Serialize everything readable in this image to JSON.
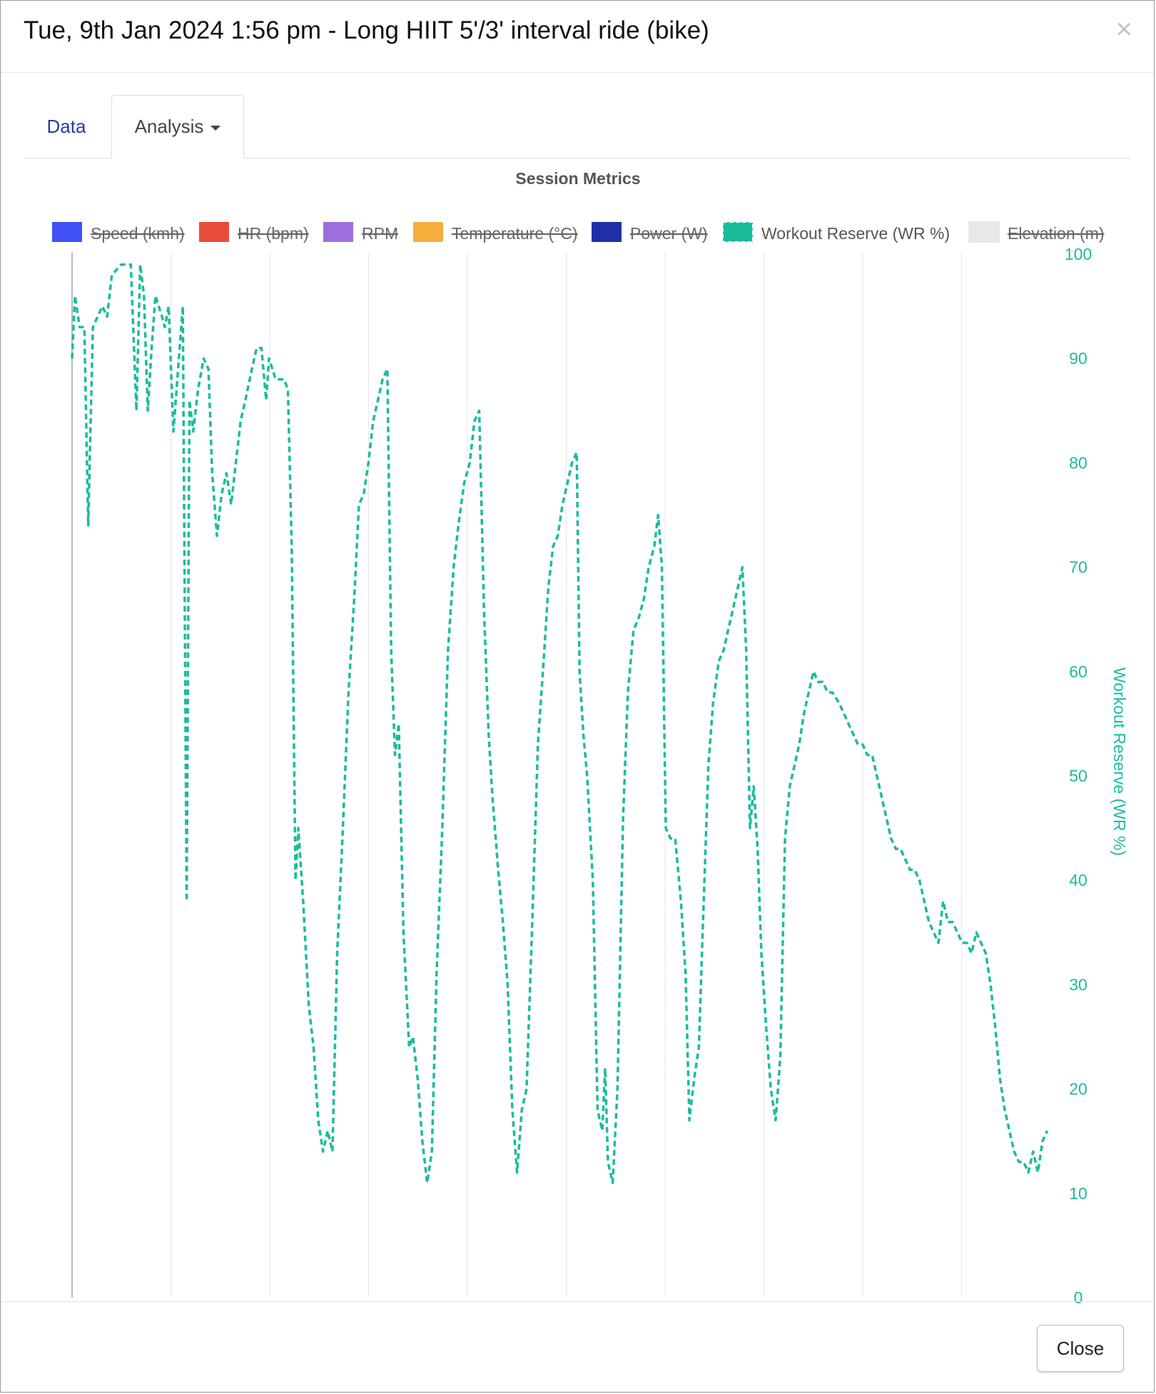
{
  "modal": {
    "title": "Tue, 9th Jan 2024 1:56 pm - Long HIIT 5'/3' interval ride (bike)",
    "close_icon": "×",
    "close_label": "Close"
  },
  "tabs": [
    {
      "label": "Data",
      "active": false
    },
    {
      "label": "Analysis",
      "active": true,
      "has_dropdown": true
    }
  ],
  "chart_data": {
    "type": "line",
    "title": "Session Metrics",
    "legend": [
      {
        "name": "Speed (kmh)",
        "color": "#3f51f5",
        "enabled": false
      },
      {
        "name": "HR (bpm)",
        "color": "#e84c3d",
        "enabled": false
      },
      {
        "name": "RPM",
        "color": "#9c6fde",
        "enabled": false
      },
      {
        "name": "Temperature (°C)",
        "color": "#f7ae3c",
        "enabled": false
      },
      {
        "name": "Power (W)",
        "color": "#1f2fa8",
        "enabled": false
      },
      {
        "name": "Workout Reserve (WR %)",
        "color": "#1bbc9b",
        "enabled": true
      },
      {
        "name": "Elevation (m)",
        "color": "#e8e8e8",
        "enabled": false
      }
    ],
    "legend_position": "top",
    "ylabel_right": "Workout Reserve (WR %)",
    "yticks": [
      0,
      10,
      20,
      30,
      40,
      50,
      60,
      70,
      80,
      90,
      100
    ],
    "ylim": [
      0,
      100
    ],
    "xlim": [
      0,
      100
    ],
    "grid_x": true,
    "series": [
      {
        "name": "Workout Reserve (WR %)",
        "color": "#1bbc9b",
        "dashed": true,
        "points": [
          [
            0,
            90
          ],
          [
            0.3,
            96
          ],
          [
            0.8,
            93
          ],
          [
            1.3,
            93
          ],
          [
            1.7,
            74
          ],
          [
            2.2,
            93
          ],
          [
            2.7,
            94
          ],
          [
            3.2,
            95
          ],
          [
            3.7,
            94
          ],
          [
            4.2,
            98
          ],
          [
            5.2,
            99
          ],
          [
            6.2,
            99
          ],
          [
            6.8,
            85
          ],
          [
            7.2,
            99
          ],
          [
            7.6,
            96
          ],
          [
            8.0,
            85
          ],
          [
            8.4,
            91
          ],
          [
            8.8,
            96
          ],
          [
            9.5,
            94
          ],
          [
            9.8,
            93
          ],
          [
            10.2,
            95
          ],
          [
            10.7,
            83
          ],
          [
            11.2,
            89
          ],
          [
            11.7,
            95
          ],
          [
            12.1,
            38
          ],
          [
            12.4,
            86
          ],
          [
            12.8,
            83
          ],
          [
            13.3,
            87
          ],
          [
            13.9,
            90
          ],
          [
            14.4,
            89
          ],
          [
            14.8,
            79
          ],
          [
            15.3,
            73
          ],
          [
            15.8,
            77
          ],
          [
            16.3,
            79
          ],
          [
            16.8,
            76
          ],
          [
            17.3,
            80
          ],
          [
            17.8,
            84
          ],
          [
            18.3,
            86
          ],
          [
            19.0,
            89
          ],
          [
            19.5,
            91
          ],
          [
            20.0,
            91
          ],
          [
            20.5,
            86
          ],
          [
            20.8,
            90
          ],
          [
            21.5,
            88
          ],
          [
            22.0,
            88
          ],
          [
            22.4,
            88
          ],
          [
            22.8,
            87
          ],
          [
            23.2,
            72
          ],
          [
            23.6,
            40
          ],
          [
            23.9,
            45
          ],
          [
            24.4,
            38
          ],
          [
            25.0,
            28
          ],
          [
            25.5,
            24
          ],
          [
            26.0,
            17
          ],
          [
            26.5,
            14
          ],
          [
            27.0,
            16
          ],
          [
            27.5,
            14
          ],
          [
            28.0,
            33
          ],
          [
            28.6,
            45
          ],
          [
            29.2,
            58
          ],
          [
            29.8,
            67
          ],
          [
            30.3,
            76
          ],
          [
            30.8,
            77
          ],
          [
            31.3,
            80
          ],
          [
            31.8,
            84
          ],
          [
            32.3,
            86
          ],
          [
            32.8,
            88
          ],
          [
            33.3,
            89
          ],
          [
            33.7,
            62
          ],
          [
            34.1,
            52
          ],
          [
            34.5,
            55
          ],
          [
            35.0,
            35
          ],
          [
            35.6,
            24
          ],
          [
            36.0,
            25
          ],
          [
            36.5,
            21
          ],
          [
            37.0,
            15
          ],
          [
            37.5,
            11
          ],
          [
            38.0,
            14
          ],
          [
            38.5,
            31
          ],
          [
            39.1,
            45
          ],
          [
            39.7,
            62
          ],
          [
            40.3,
            70
          ],
          [
            40.8,
            74
          ],
          [
            41.4,
            78
          ],
          [
            42.0,
            80
          ],
          [
            42.5,
            84
          ],
          [
            43.0,
            85
          ],
          [
            43.5,
            66
          ],
          [
            44.0,
            54
          ],
          [
            44.4,
            48
          ],
          [
            45.0,
            41
          ],
          [
            45.5,
            36
          ],
          [
            46.0,
            30
          ],
          [
            46.5,
            18
          ],
          [
            47.0,
            12
          ],
          [
            47.5,
            18
          ],
          [
            48.0,
            20
          ],
          [
            48.6,
            36
          ],
          [
            49.2,
            53
          ],
          [
            49.8,
            61
          ],
          [
            50.3,
            68
          ],
          [
            50.8,
            72
          ],
          [
            51.3,
            73
          ],
          [
            51.8,
            76
          ],
          [
            52.3,
            78
          ],
          [
            52.8,
            80
          ],
          [
            53.3,
            81
          ],
          [
            53.6,
            60
          ],
          [
            54.0,
            54
          ],
          [
            54.4,
            50
          ],
          [
            55.0,
            40
          ],
          [
            55.5,
            18
          ],
          [
            56.0,
            16
          ],
          [
            56.3,
            22
          ],
          [
            56.6,
            13
          ],
          [
            57.1,
            11
          ],
          [
            57.6,
            20
          ],
          [
            58.2,
            46
          ],
          [
            58.7,
            58
          ],
          [
            59.3,
            64
          ],
          [
            59.8,
            65
          ],
          [
            60.4,
            67
          ],
          [
            60.9,
            70
          ],
          [
            61.5,
            72
          ],
          [
            61.9,
            75
          ],
          [
            62.3,
            70
          ],
          [
            62.7,
            45
          ],
          [
            63.2,
            44
          ],
          [
            63.7,
            44
          ],
          [
            64.3,
            38
          ],
          [
            64.8,
            31
          ],
          [
            65.2,
            17
          ],
          [
            65.7,
            21
          ],
          [
            66.2,
            24
          ],
          [
            66.6,
            35
          ],
          [
            67.2,
            51
          ],
          [
            67.7,
            57
          ],
          [
            68.3,
            61
          ],
          [
            68.8,
            62
          ],
          [
            69.3,
            64
          ],
          [
            69.8,
            66
          ],
          [
            70.3,
            68
          ],
          [
            70.8,
            70
          ],
          [
            71.2,
            62
          ],
          [
            71.6,
            45
          ],
          [
            72.0,
            49
          ],
          [
            72.4,
            43
          ],
          [
            72.8,
            33
          ],
          [
            73.3,
            26
          ],
          [
            73.8,
            20
          ],
          [
            74.3,
            17
          ],
          [
            74.8,
            23
          ],
          [
            75.3,
            44
          ],
          [
            75.8,
            49
          ],
          [
            76.3,
            51
          ],
          [
            76.8,
            53
          ],
          [
            77.3,
            56
          ],
          [
            77.8,
            58
          ],
          [
            78.3,
            60
          ],
          [
            78.8,
            59
          ],
          [
            79.3,
            59
          ],
          [
            79.8,
            58
          ],
          [
            80.3,
            58
          ],
          [
            81.0,
            57
          ],
          [
            81.5,
            56
          ],
          [
            82.0,
            55
          ],
          [
            82.5,
            54
          ],
          [
            83.0,
            53
          ],
          [
            83.5,
            53
          ],
          [
            84.0,
            52
          ],
          [
            84.5,
            52
          ],
          [
            85.0,
            50
          ],
          [
            85.5,
            48
          ],
          [
            86.0,
            46
          ],
          [
            86.5,
            44
          ],
          [
            87.0,
            43
          ],
          [
            87.5,
            43
          ],
          [
            88.0,
            42
          ],
          [
            88.5,
            41
          ],
          [
            89.0,
            41
          ],
          [
            89.5,
            40
          ],
          [
            90.0,
            38
          ],
          [
            90.5,
            36
          ],
          [
            91.0,
            35
          ],
          [
            91.5,
            34
          ],
          [
            92.0,
            38
          ],
          [
            92.5,
            36
          ],
          [
            93.0,
            36
          ],
          [
            93.5,
            35
          ],
          [
            94.0,
            34
          ],
          [
            94.5,
            34
          ],
          [
            95.0,
            33
          ],
          [
            95.5,
            35
          ],
          [
            96.0,
            34
          ],
          [
            96.5,
            33
          ],
          [
            97.0,
            30
          ],
          [
            97.5,
            26
          ],
          [
            98.0,
            21
          ],
          [
            98.5,
            18
          ],
          [
            99.0,
            16
          ],
          [
            99.5,
            14
          ],
          [
            100.0,
            13
          ],
          [
            100.5,
            13
          ],
          [
            101.0,
            12
          ],
          [
            101.5,
            14
          ],
          [
            102.0,
            12
          ],
          [
            102.5,
            15
          ],
          [
            103.0,
            16
          ]
        ]
      }
    ]
  }
}
